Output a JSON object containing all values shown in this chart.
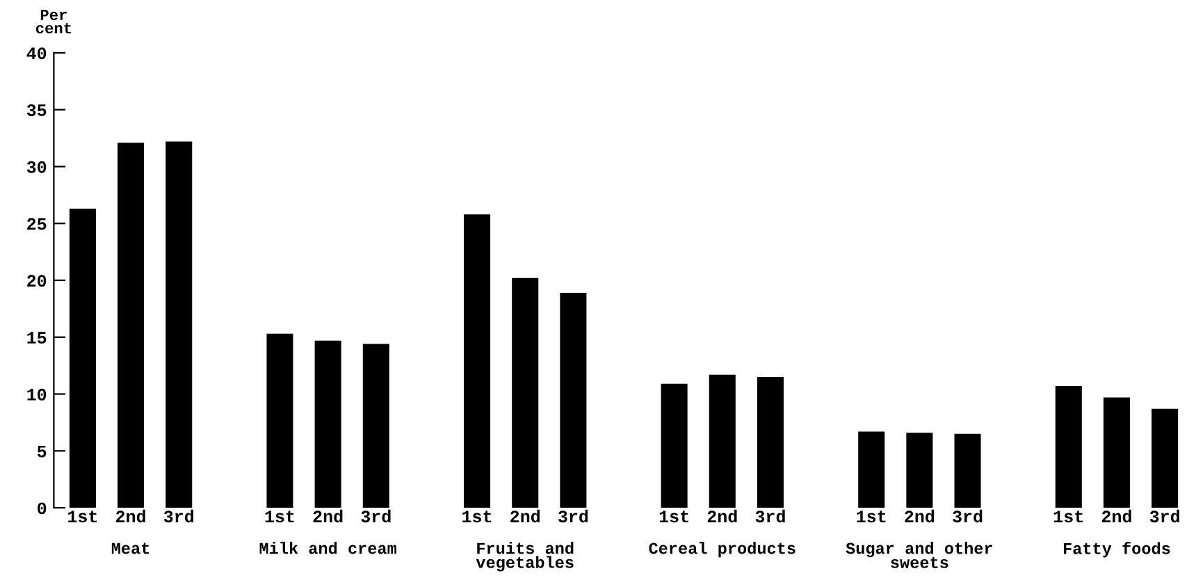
{
  "chart_data": {
    "type": "bar",
    "ylabel": "Per\ncent",
    "categories": [
      "1st",
      "2nd",
      "3rd",
      "1st",
      "2nd",
      "3rd",
      "1st",
      "2nd",
      "3rd",
      "1st",
      "2nd",
      "3rd",
      "1st",
      "2nd",
      "3rd",
      "1st",
      "2nd",
      "3rd"
    ],
    "values": [
      26.3,
      32.1,
      32.2,
      15.3,
      14.7,
      14.4,
      25.8,
      20.2,
      18.9,
      10.9,
      11.7,
      11.5,
      6.7,
      6.6,
      6.5,
      10.7,
      9.7,
      8.7
    ],
    "color": "#000000",
    "annotations": [
      "Meat",
      "Milk and cream",
      "Fruits and\nvegetables",
      "Cereal products",
      "Sugar and other\nsweets",
      "Fatty foods"
    ],
    "ylim": [
      0,
      40
    ],
    "yticks": [
      0,
      5,
      10,
      15,
      20,
      25,
      30,
      35,
      40
    ],
    "grid": false,
    "legend": false
  }
}
